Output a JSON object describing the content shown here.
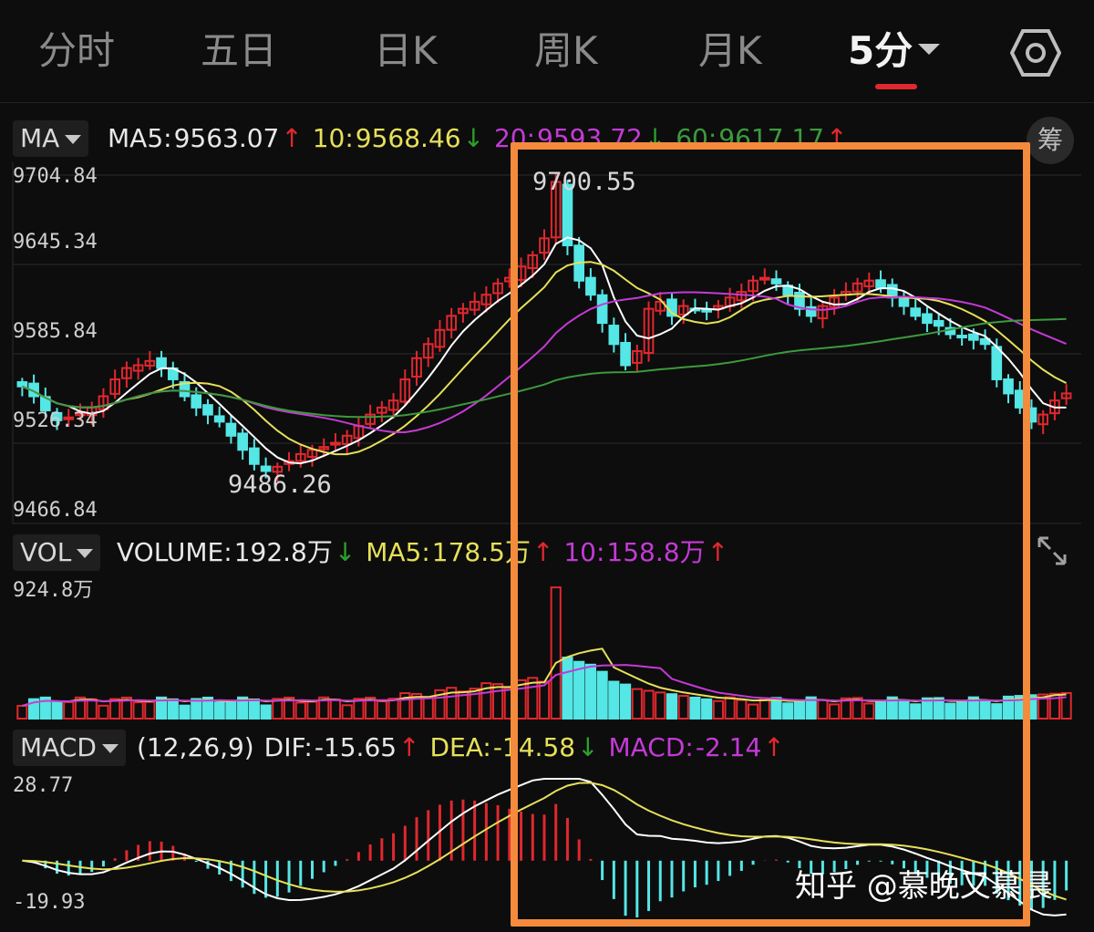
{
  "tabs": [
    {
      "label": "分时"
    },
    {
      "label": "五日"
    },
    {
      "label": "日K"
    },
    {
      "label": "周K"
    },
    {
      "label": "月K"
    },
    {
      "label": "5分"
    }
  ],
  "active_tab": "5分",
  "settings_icon": "hexagon-settings-icon",
  "ma_panel": {
    "selector": "MA",
    "ma5_label": "MA5:",
    "ma5_value": "9563.07",
    "ma10_label": "10:",
    "ma10_value": "9568.46",
    "ma20_label": "20:",
    "ma20_value": "9593.72",
    "ma60_label": "60:",
    "ma60_value": "9617.17",
    "chip_label": "筹",
    "y_ticks": [
      "9704.84",
      "9645.34",
      "9585.84",
      "9526.34",
      "9466.84"
    ],
    "high_label": "9700.55",
    "low_label": "9486.26"
  },
  "vol_panel": {
    "selector": "VOL",
    "volume_label": "VOLUME:",
    "volume_value": "192.8万",
    "ma5_label": "MA5:",
    "ma5_value": "178.5万",
    "ma10_label": "10:",
    "ma10_value": "158.8万",
    "y_max": "924.8万"
  },
  "macd_panel": {
    "selector": "MACD",
    "params": "(12,26,9)",
    "dif_label": "DIF:",
    "dif_value": "-15.65",
    "dea_label": "DEA:",
    "dea_value": "-14.58",
    "macd_label": "MACD:",
    "macd_value": "-2.14",
    "y_top": "28.77",
    "y_bottom": "-19.93"
  },
  "colors": {
    "up": "#e0282e",
    "down": "#55e6e6",
    "ma5": "#ffffff",
    "ma10": "#e6e05a",
    "ma20": "#c43ad6",
    "ma60": "#3c9a3c",
    "highlight": "#f48a3c"
  },
  "watermark": "知乎 @慕晚又慕晨",
  "chart_data": {
    "type": "candlestick",
    "ylim": [
      9466.84,
      9704.84
    ],
    "closes": [
      9555,
      9548,
      9538,
      9531,
      9533,
      9536,
      9540,
      9548,
      9560,
      9568,
      9570,
      9573,
      9568,
      9560,
      9548,
      9540,
      9535,
      9530,
      9520,
      9510,
      9500,
      9495,
      9498,
      9502,
      9507,
      9510,
      9512,
      9515,
      9520,
      9527,
      9535,
      9540,
      9545,
      9560,
      9575,
      9585,
      9595,
      9605,
      9610,
      9615,
      9620,
      9628,
      9632,
      9640,
      9648,
      9660,
      9700,
      9655,
      9630,
      9620,
      9600,
      9585,
      9570,
      9580,
      9610,
      9615,
      9605,
      9612,
      9610,
      9608,
      9612,
      9618,
      9622,
      9630,
      9632,
      9628,
      9620,
      9610,
      9605,
      9612,
      9618,
      9622,
      9628,
      9630,
      9625,
      9618,
      9612,
      9605,
      9600,
      9598,
      9592,
      9590,
      9588,
      9585,
      9560,
      9550,
      9540,
      9530,
      9535,
      9545,
      9550
    ]
  }
}
